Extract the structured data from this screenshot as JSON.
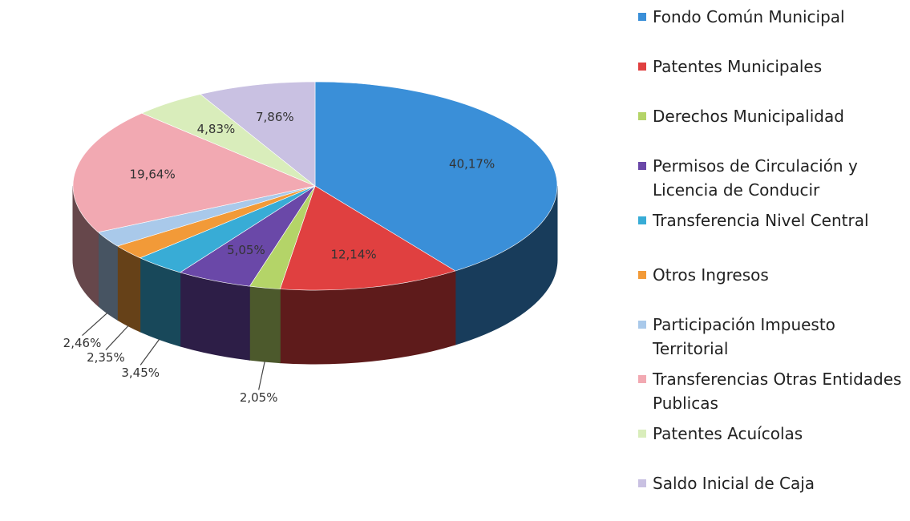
{
  "chart_data": {
    "type": "pie",
    "categories": [
      "Fondo Común Municipal",
      "Patentes Municipales",
      "Derechos Municipalidad",
      "Permisos de Circulación y Licencia de Conducir",
      "Transferencia Nivel Central",
      "Otros Ingresos",
      "Participación Impuesto Territorial",
      "Transferencias Otras Entidades Publicas",
      "Patentes Acuícolas",
      "Saldo Inicial de Caja"
    ],
    "values": [
      40.17,
      12.14,
      2.05,
      5.05,
      3.45,
      2.35,
      2.46,
      19.64,
      4.83,
      7.86
    ],
    "value_labels": [
      "40,17%",
      "12,14%",
      "2,05%",
      "5,05%",
      "3,45%",
      "2,35%",
      "2,46%",
      "19,64%",
      "4,83%",
      "7,86%"
    ],
    "colors": [
      "#3a8fd8",
      "#e04040",
      "#b4d468",
      "#6a48a8",
      "#38acd6",
      "#f29a38",
      "#a9c9ea",
      "#f2a9b2",
      "#d9edbb",
      "#c9c1e2"
    ],
    "legend": "right"
  }
}
